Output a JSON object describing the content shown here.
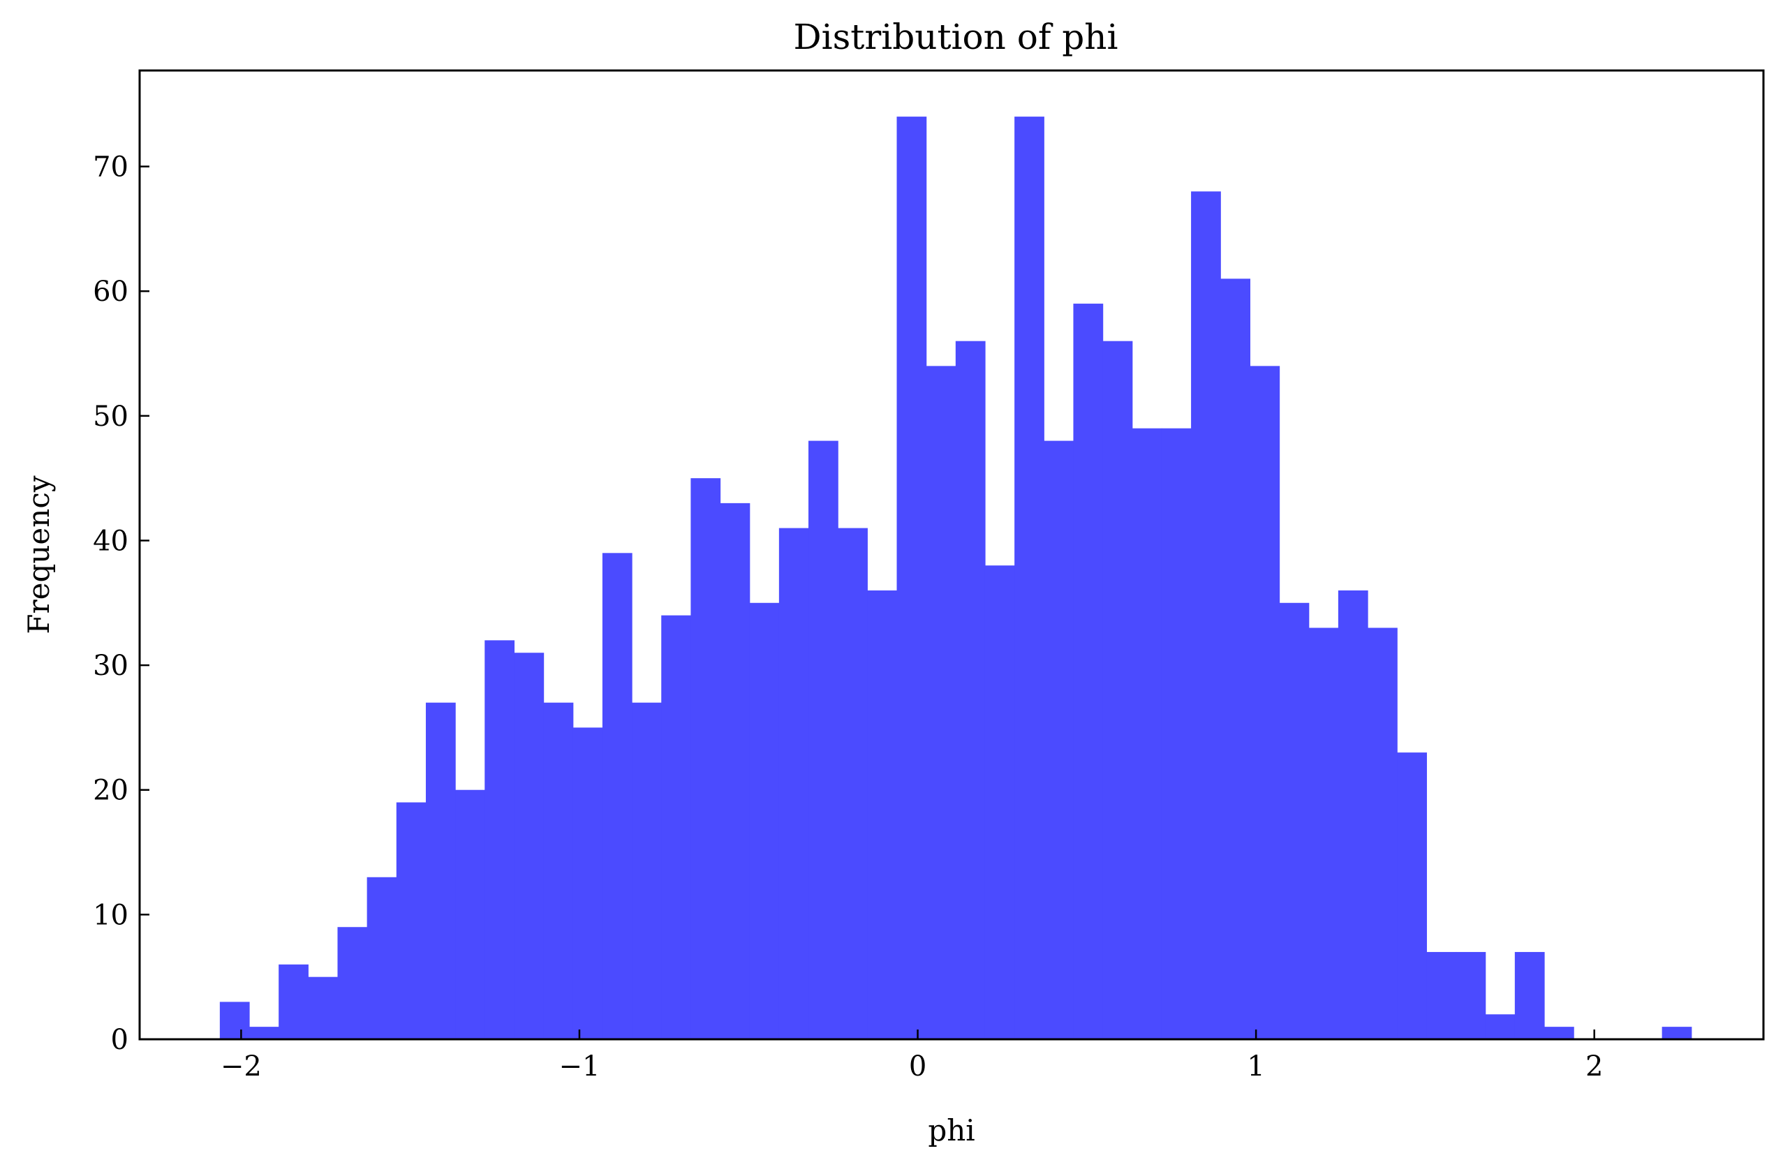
{
  "chart_data": {
    "type": "bar",
    "title": "Distribution of phi",
    "xlabel": "phi",
    "ylabel": "Frequency",
    "xlim": [
      -2.3,
      2.5
    ],
    "ylim": [
      0,
      77.7
    ],
    "bar_color": "#4b4bff",
    "grid": false,
    "x_ticks": [
      -2,
      -1,
      0,
      1,
      2
    ],
    "x_tick_labels": [
      "−2",
      "−1",
      "0",
      "1",
      "2"
    ],
    "y_ticks": [
      0,
      10,
      20,
      30,
      40,
      50,
      60,
      70
    ],
    "y_tick_labels": [
      "0",
      "10",
      "20",
      "30",
      "40",
      "50",
      "60",
      "70"
    ],
    "bins": [
      {
        "x0": -2.063,
        "x1": -1.976,
        "count": 3
      },
      {
        "x0": -1.976,
        "x1": -1.889,
        "count": 1
      },
      {
        "x0": -1.889,
        "x1": -1.802,
        "count": 6
      },
      {
        "x0": -1.802,
        "x1": -1.715,
        "count": 5
      },
      {
        "x0": -1.715,
        "x1": -1.628,
        "count": 9
      },
      {
        "x0": -1.628,
        "x1": -1.541,
        "count": 13
      },
      {
        "x0": -1.541,
        "x1": -1.454,
        "count": 19
      },
      {
        "x0": -1.454,
        "x1": -1.367,
        "count": 27
      },
      {
        "x0": -1.367,
        "x1": -1.28,
        "count": 20
      },
      {
        "x0": -1.28,
        "x1": -1.193,
        "count": 32
      },
      {
        "x0": -1.193,
        "x1": -1.106,
        "count": 31
      },
      {
        "x0": -1.106,
        "x1": -1.019,
        "count": 27
      },
      {
        "x0": -1.019,
        "x1": -0.932,
        "count": 25
      },
      {
        "x0": -0.932,
        "x1": -0.845,
        "count": 39
      },
      {
        "x0": -0.845,
        "x1": -0.758,
        "count": 27
      },
      {
        "x0": -0.758,
        "x1": -0.671,
        "count": 34
      },
      {
        "x0": -0.671,
        "x1": -0.584,
        "count": 45
      },
      {
        "x0": -0.584,
        "x1": -0.497,
        "count": 43
      },
      {
        "x0": -0.497,
        "x1": -0.41,
        "count": 35
      },
      {
        "x0": -0.41,
        "x1": -0.323,
        "count": 41
      },
      {
        "x0": -0.323,
        "x1": -0.236,
        "count": 48
      },
      {
        "x0": -0.236,
        "x1": -0.149,
        "count": 41
      },
      {
        "x0": -0.149,
        "x1": -0.062,
        "count": 36
      },
      {
        "x0": -0.062,
        "x1": 0.025,
        "count": 74
      },
      {
        "x0": 0.025,
        "x1": 0.112,
        "count": 54
      },
      {
        "x0": 0.112,
        "x1": 0.199,
        "count": 56
      },
      {
        "x0": 0.199,
        "x1": 0.286,
        "count": 38
      },
      {
        "x0": 0.286,
        "x1": 0.373,
        "count": 74
      },
      {
        "x0": 0.373,
        "x1": 0.46,
        "count": 48
      },
      {
        "x0": 0.46,
        "x1": 0.547,
        "count": 59
      },
      {
        "x0": 0.547,
        "x1": 0.634,
        "count": 56
      },
      {
        "x0": 0.634,
        "x1": 0.721,
        "count": 49
      },
      {
        "x0": 0.721,
        "x1": 0.808,
        "count": 49
      },
      {
        "x0": 0.808,
        "x1": 0.895,
        "count": 68
      },
      {
        "x0": 0.895,
        "x1": 0.982,
        "count": 61
      },
      {
        "x0": 0.982,
        "x1": 1.069,
        "count": 54
      },
      {
        "x0": 1.069,
        "x1": 1.156,
        "count": 35
      },
      {
        "x0": 1.156,
        "x1": 1.243,
        "count": 33
      },
      {
        "x0": 1.243,
        "x1": 1.33,
        "count": 36
      },
      {
        "x0": 1.33,
        "x1": 1.417,
        "count": 33
      },
      {
        "x0": 1.417,
        "x1": 1.504,
        "count": 23
      },
      {
        "x0": 1.504,
        "x1": 1.591,
        "count": 7
      },
      {
        "x0": 1.591,
        "x1": 1.678,
        "count": 7
      },
      {
        "x0": 1.678,
        "x1": 1.765,
        "count": 2
      },
      {
        "x0": 1.765,
        "x1": 1.852,
        "count": 7
      },
      {
        "x0": 1.852,
        "x1": 1.939,
        "count": 1
      },
      {
        "x0": 1.939,
        "x1": 2.026,
        "count": 0
      },
      {
        "x0": 2.026,
        "x1": 2.113,
        "count": 0
      },
      {
        "x0": 2.113,
        "x1": 2.2,
        "count": 0
      },
      {
        "x0": 2.2,
        "x1": 2.287,
        "count": 1
      }
    ]
  }
}
